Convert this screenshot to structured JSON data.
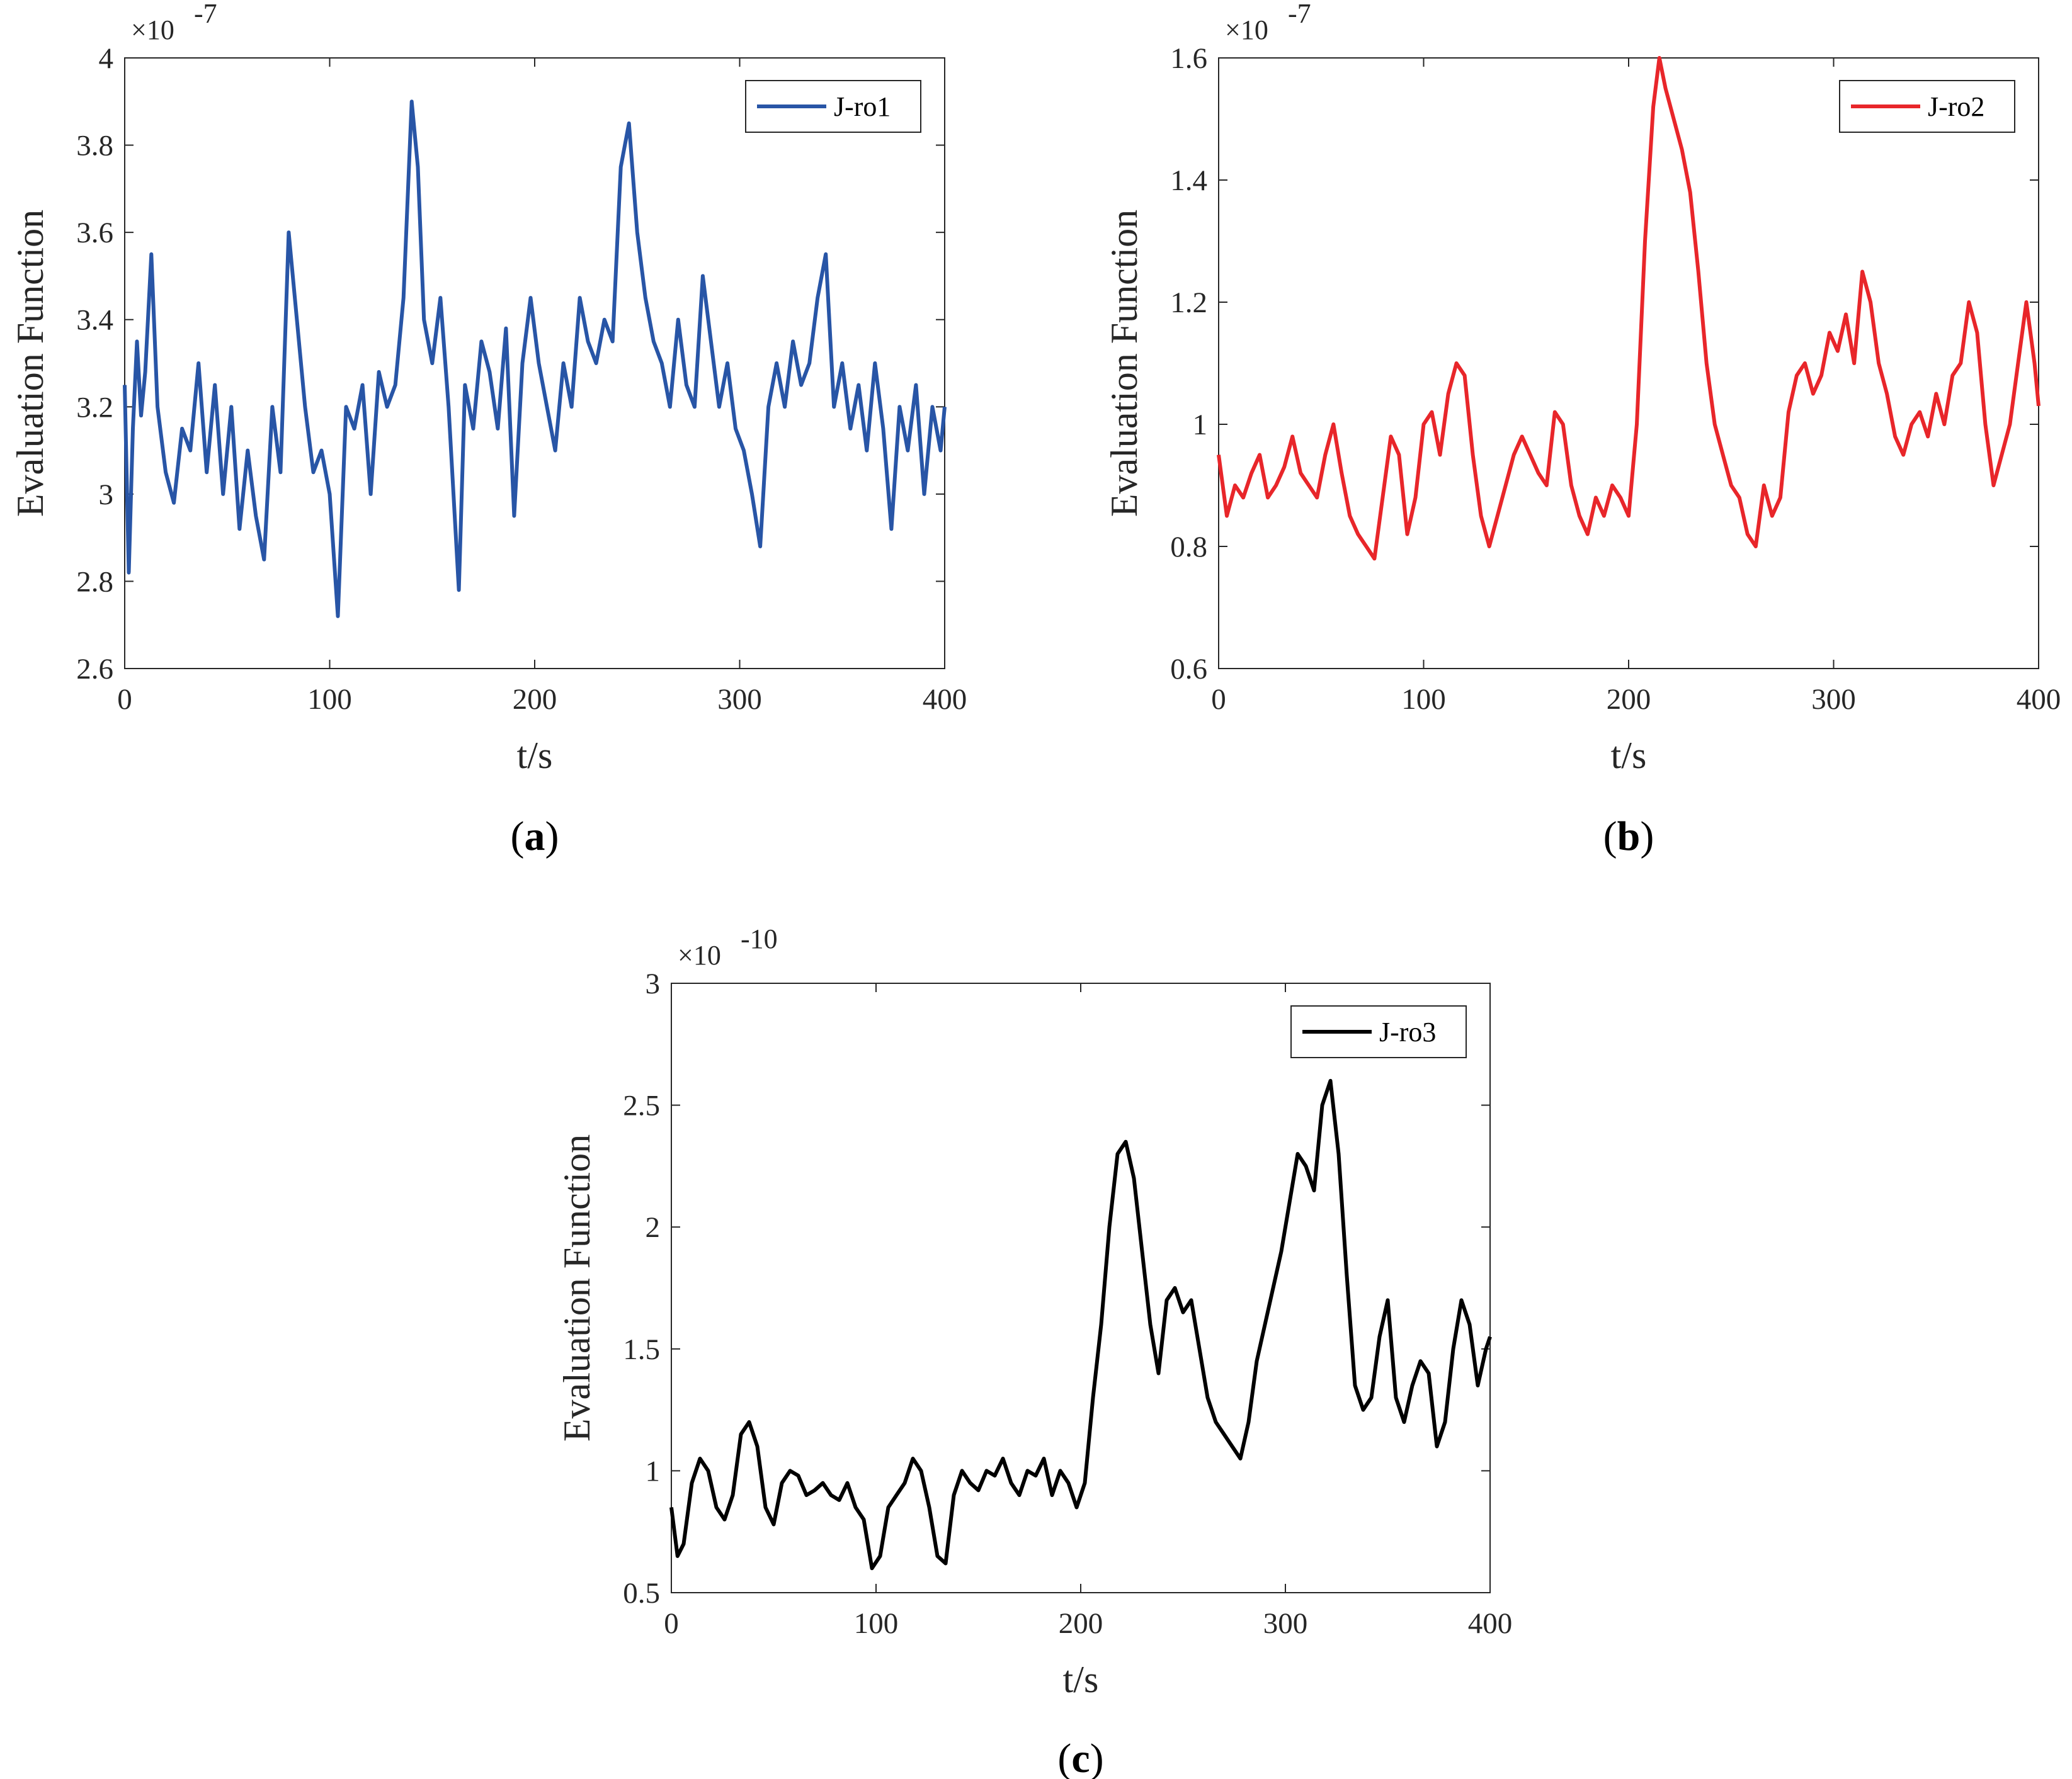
{
  "chart_data": [
    {
      "type": "line",
      "caption": "(a)",
      "caption_letter": "a",
      "xlabel": "t/s",
      "ylabel": "Evaluation Function",
      "multiplier": "×10",
      "exponent": "-7",
      "xlim": [
        0,
        400
      ],
      "ylim": [
        2.6,
        4.0
      ],
      "xticks": [
        0,
        100,
        200,
        300,
        400
      ],
      "xtick_labels": [
        "0",
        "100",
        "200",
        "300",
        "400"
      ],
      "yticks": [
        2.6,
        2.8,
        3.0,
        3.2,
        3.4,
        3.6,
        3.8,
        4.0
      ],
      "ytick_labels": [
        "2.6",
        "2.8",
        "3",
        "3.2",
        "3.4",
        "3.6",
        "3.8",
        "4"
      ],
      "series": [
        {
          "name": "J-ro1",
          "color": "#2855a6",
          "x": [
            0,
            2,
            4,
            6,
            8,
            10,
            13,
            16,
            20,
            24,
            28,
            32,
            36,
            40,
            44,
            48,
            52,
            56,
            60,
            64,
            68,
            72,
            76,
            80,
            84,
            88,
            92,
            96,
            100,
            104,
            108,
            112,
            116,
            120,
            124,
            128,
            132,
            136,
            140,
            143,
            146,
            150,
            154,
            158,
            163,
            166,
            170,
            174,
            178,
            182,
            186,
            190,
            194,
            198,
            202,
            206,
            210,
            214,
            218,
            222,
            226,
            230,
            234,
            238,
            242,
            246,
            250,
            254,
            258,
            262,
            266,
            270,
            274,
            278,
            282,
            286,
            290,
            294,
            298,
            302,
            306,
            310,
            314,
            318,
            322,
            326,
            330,
            334,
            338,
            342,
            346,
            350,
            354,
            358,
            362,
            366,
            370,
            374,
            378,
            382,
            386,
            390,
            394,
            398,
            400
          ],
          "values": [
            3.25,
            2.82,
            3.15,
            3.35,
            3.18,
            3.28,
            3.55,
            3.2,
            3.05,
            2.98,
            3.15,
            3.1,
            3.3,
            3.05,
            3.25,
            3.0,
            3.2,
            2.92,
            3.1,
            2.95,
            2.85,
            3.2,
            3.05,
            3.6,
            3.4,
            3.2,
            3.05,
            3.1,
            3.0,
            2.72,
            3.2,
            3.15,
            3.25,
            3.0,
            3.28,
            3.2,
            3.25,
            3.45,
            3.9,
            3.75,
            3.4,
            3.3,
            3.45,
            3.2,
            2.78,
            3.25,
            3.15,
            3.35,
            3.28,
            3.15,
            3.38,
            2.95,
            3.3,
            3.45,
            3.3,
            3.2,
            3.1,
            3.3,
            3.2,
            3.45,
            3.35,
            3.3,
            3.4,
            3.35,
            3.75,
            3.85,
            3.6,
            3.45,
            3.35,
            3.3,
            3.2,
            3.4,
            3.25,
            3.2,
            3.5,
            3.35,
            3.2,
            3.3,
            3.15,
            3.1,
            3.0,
            2.88,
            3.2,
            3.3,
            3.2,
            3.35,
            3.25,
            3.3,
            3.45,
            3.55,
            3.2,
            3.3,
            3.15,
            3.25,
            3.1,
            3.3,
            3.15,
            2.92,
            3.2,
            3.1,
            3.25,
            3.0,
            3.2,
            3.1,
            3.2
          ]
        }
      ],
      "legend": "top-right"
    },
    {
      "type": "line",
      "caption": "(b)",
      "caption_letter": "b",
      "xlabel": "t/s",
      "ylabel": "Evaluation Function",
      "multiplier": "×10",
      "exponent": "-7",
      "xlim": [
        0,
        400
      ],
      "ylim": [
        0.6,
        1.6
      ],
      "xticks": [
        0,
        100,
        200,
        300,
        400
      ],
      "xtick_labels": [
        "0",
        "100",
        "200",
        "300",
        "400"
      ],
      "yticks": [
        0.6,
        0.8,
        1.0,
        1.2,
        1.4,
        1.6
      ],
      "ytick_labels": [
        "0.6",
        "0.8",
        "1",
        "1.2",
        "1.4",
        "1.6"
      ],
      "series": [
        {
          "name": "J-ro2",
          "color": "#e8262a",
          "x": [
            0,
            4,
            8,
            12,
            16,
            20,
            24,
            28,
            32,
            36,
            40,
            44,
            48,
            52,
            56,
            60,
            64,
            68,
            72,
            76,
            80,
            84,
            88,
            92,
            96,
            100,
            104,
            108,
            112,
            116,
            120,
            124,
            128,
            132,
            136,
            140,
            144,
            148,
            152,
            156,
            160,
            164,
            168,
            172,
            176,
            180,
            184,
            188,
            192,
            196,
            200,
            204,
            208,
            212,
            215,
            218,
            222,
            226,
            230,
            234,
            238,
            242,
            246,
            250,
            254,
            258,
            262,
            266,
            270,
            274,
            278,
            282,
            286,
            290,
            294,
            298,
            302,
            306,
            310,
            314,
            318,
            322,
            326,
            330,
            334,
            338,
            342,
            346,
            350,
            354,
            358,
            362,
            366,
            370,
            374,
            378,
            382,
            386,
            390,
            394,
            398,
            400
          ],
          "values": [
            0.95,
            0.85,
            0.9,
            0.88,
            0.92,
            0.95,
            0.88,
            0.9,
            0.93,
            0.98,
            0.92,
            0.9,
            0.88,
            0.95,
            1.0,
            0.92,
            0.85,
            0.82,
            0.8,
            0.78,
            0.88,
            0.98,
            0.95,
            0.82,
            0.88,
            1.0,
            1.02,
            0.95,
            1.05,
            1.1,
            1.08,
            0.95,
            0.85,
            0.8,
            0.85,
            0.9,
            0.95,
            0.98,
            0.95,
            0.92,
            0.9,
            1.02,
            1.0,
            0.9,
            0.85,
            0.82,
            0.88,
            0.85,
            0.9,
            0.88,
            0.85,
            1.0,
            1.3,
            1.52,
            1.6,
            1.55,
            1.5,
            1.45,
            1.38,
            1.25,
            1.1,
            1.0,
            0.95,
            0.9,
            0.88,
            0.82,
            0.8,
            0.9,
            0.85,
            0.88,
            1.02,
            1.08,
            1.1,
            1.05,
            1.08,
            1.15,
            1.12,
            1.18,
            1.1,
            1.25,
            1.2,
            1.1,
            1.05,
            0.98,
            0.95,
            1.0,
            1.02,
            0.98,
            1.05,
            1.0,
            1.08,
            1.1,
            1.2,
            1.15,
            1.0,
            0.9,
            0.95,
            1.0,
            1.1,
            1.2,
            1.1,
            1.03
          ]
        }
      ],
      "legend": "top-right"
    },
    {
      "type": "line",
      "caption": "(c)",
      "caption_letter": "c",
      "xlabel": "t/s",
      "ylabel": "Evaluation Function",
      "multiplier": "×10",
      "exponent": "-10",
      "xlim": [
        0,
        400
      ],
      "ylim": [
        0.5,
        3.0
      ],
      "xticks": [
        0,
        100,
        200,
        300,
        400
      ],
      "xtick_labels": [
        "0",
        "100",
        "200",
        "300",
        "400"
      ],
      "yticks": [
        0.5,
        1.0,
        1.5,
        2.0,
        2.5,
        3.0
      ],
      "ytick_labels": [
        "0.5",
        "1",
        "1.5",
        "2",
        "2.5",
        "3"
      ],
      "series": [
        {
          "name": "J-ro3",
          "color": "#000000",
          "x": [
            0,
            3,
            6,
            10,
            14,
            18,
            22,
            26,
            30,
            34,
            38,
            42,
            46,
            50,
            54,
            58,
            62,
            66,
            70,
            74,
            78,
            82,
            86,
            90,
            94,
            98,
            102,
            106,
            110,
            114,
            118,
            122,
            126,
            130,
            134,
            138,
            142,
            146,
            150,
            154,
            158,
            162,
            166,
            170,
            174,
            178,
            182,
            186,
            190,
            194,
            198,
            202,
            206,
            210,
            214,
            218,
            222,
            226,
            230,
            234,
            238,
            242,
            246,
            250,
            254,
            258,
            262,
            266,
            270,
            274,
            278,
            282,
            286,
            290,
            294,
            298,
            302,
            306,
            310,
            314,
            318,
            322,
            326,
            330,
            334,
            338,
            342,
            346,
            350,
            354,
            358,
            362,
            366,
            370,
            374,
            378,
            382,
            386,
            390,
            394,
            398,
            400
          ],
          "values": [
            0.85,
            0.65,
            0.7,
            0.95,
            1.05,
            1.0,
            0.85,
            0.8,
            0.9,
            1.15,
            1.2,
            1.1,
            0.85,
            0.78,
            0.95,
            1.0,
            0.98,
            0.9,
            0.92,
            0.95,
            0.9,
            0.88,
            0.95,
            0.85,
            0.8,
            0.6,
            0.65,
            0.85,
            0.9,
            0.95,
            1.05,
            1.0,
            0.85,
            0.65,
            0.62,
            0.9,
            1.0,
            0.95,
            0.92,
            1.0,
            0.98,
            1.05,
            0.95,
            0.9,
            1.0,
            0.98,
            1.05,
            0.9,
            1.0,
            0.95,
            0.85,
            0.95,
            1.3,
            1.6,
            2.0,
            2.3,
            2.35,
            2.2,
            1.9,
            1.6,
            1.4,
            1.7,
            1.75,
            1.65,
            1.7,
            1.5,
            1.3,
            1.2,
            1.15,
            1.1,
            1.05,
            1.2,
            1.45,
            1.6,
            1.75,
            1.9,
            2.1,
            2.3,
            2.25,
            2.15,
            2.5,
            2.6,
            2.3,
            1.8,
            1.35,
            1.25,
            1.3,
            1.55,
            1.7,
            1.3,
            1.2,
            1.35,
            1.45,
            1.4,
            1.1,
            1.2,
            1.5,
            1.7,
            1.6,
            1.35,
            1.5,
            1.55
          ]
        }
      ],
      "legend": "top-right"
    }
  ]
}
